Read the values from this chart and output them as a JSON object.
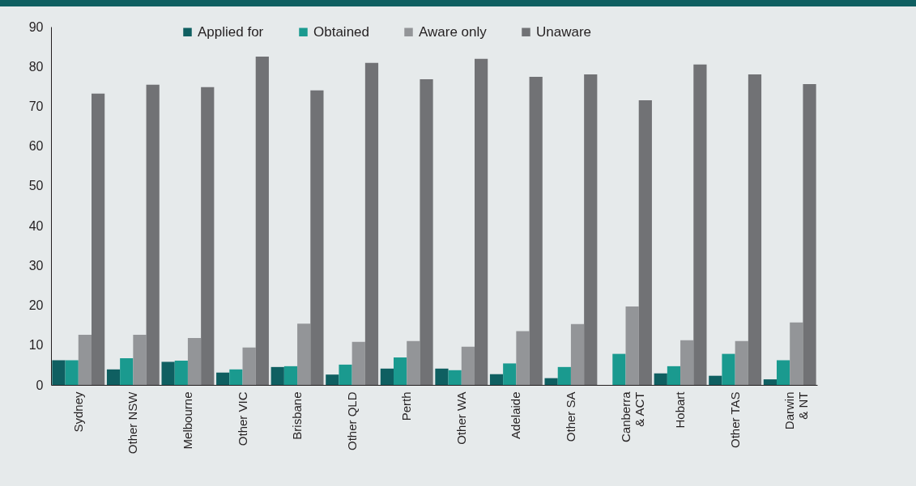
{
  "chart_data": {
    "type": "bar",
    "categories": [
      "Sydney",
      "Other NSW",
      "Melbourne",
      "Other VIC",
      "Brisbane",
      "Other QLD",
      "Perth",
      "Other WA",
      "Adelaide",
      "Other SA",
      "Canberra\n& ACT",
      "Hobart",
      "Other TAS",
      "Darwin\n& NT"
    ],
    "series": [
      {
        "name": "Applied for",
        "color": "#0f5f61",
        "values": [
          6.2,
          3.9,
          5.8,
          3.1,
          4.5,
          2.6,
          4.1,
          4.1,
          2.7,
          1.7,
          0,
          2.9,
          2.3,
          1.4
        ]
      },
      {
        "name": "Obtained",
        "color": "#1a9a8f",
        "values": [
          6.2,
          6.7,
          6.1,
          3.9,
          4.7,
          5.1,
          6.9,
          3.7,
          5.4,
          4.5,
          7.8,
          4.7,
          7.8,
          6.2
        ]
      },
      {
        "name": "Aware only",
        "color": "#939598",
        "values": [
          12.6,
          12.6,
          11.8,
          9.4,
          15.4,
          10.8,
          11.0,
          9.6,
          13.5,
          15.3,
          19.7,
          11.2,
          11.0,
          15.7
        ]
      },
      {
        "name": "Unaware",
        "color": "#717275",
        "values": [
          73.2,
          75.4,
          74.8,
          82.5,
          74.0,
          80.9,
          76.8,
          81.9,
          77.4,
          78.0,
          71.5,
          80.5,
          78.0,
          75.6
        ]
      }
    ],
    "ylim": [
      0,
      90
    ],
    "yticks": [
      0,
      10,
      20,
      30,
      40,
      50,
      60,
      70,
      80,
      90
    ],
    "grid": false,
    "legend": "top"
  }
}
